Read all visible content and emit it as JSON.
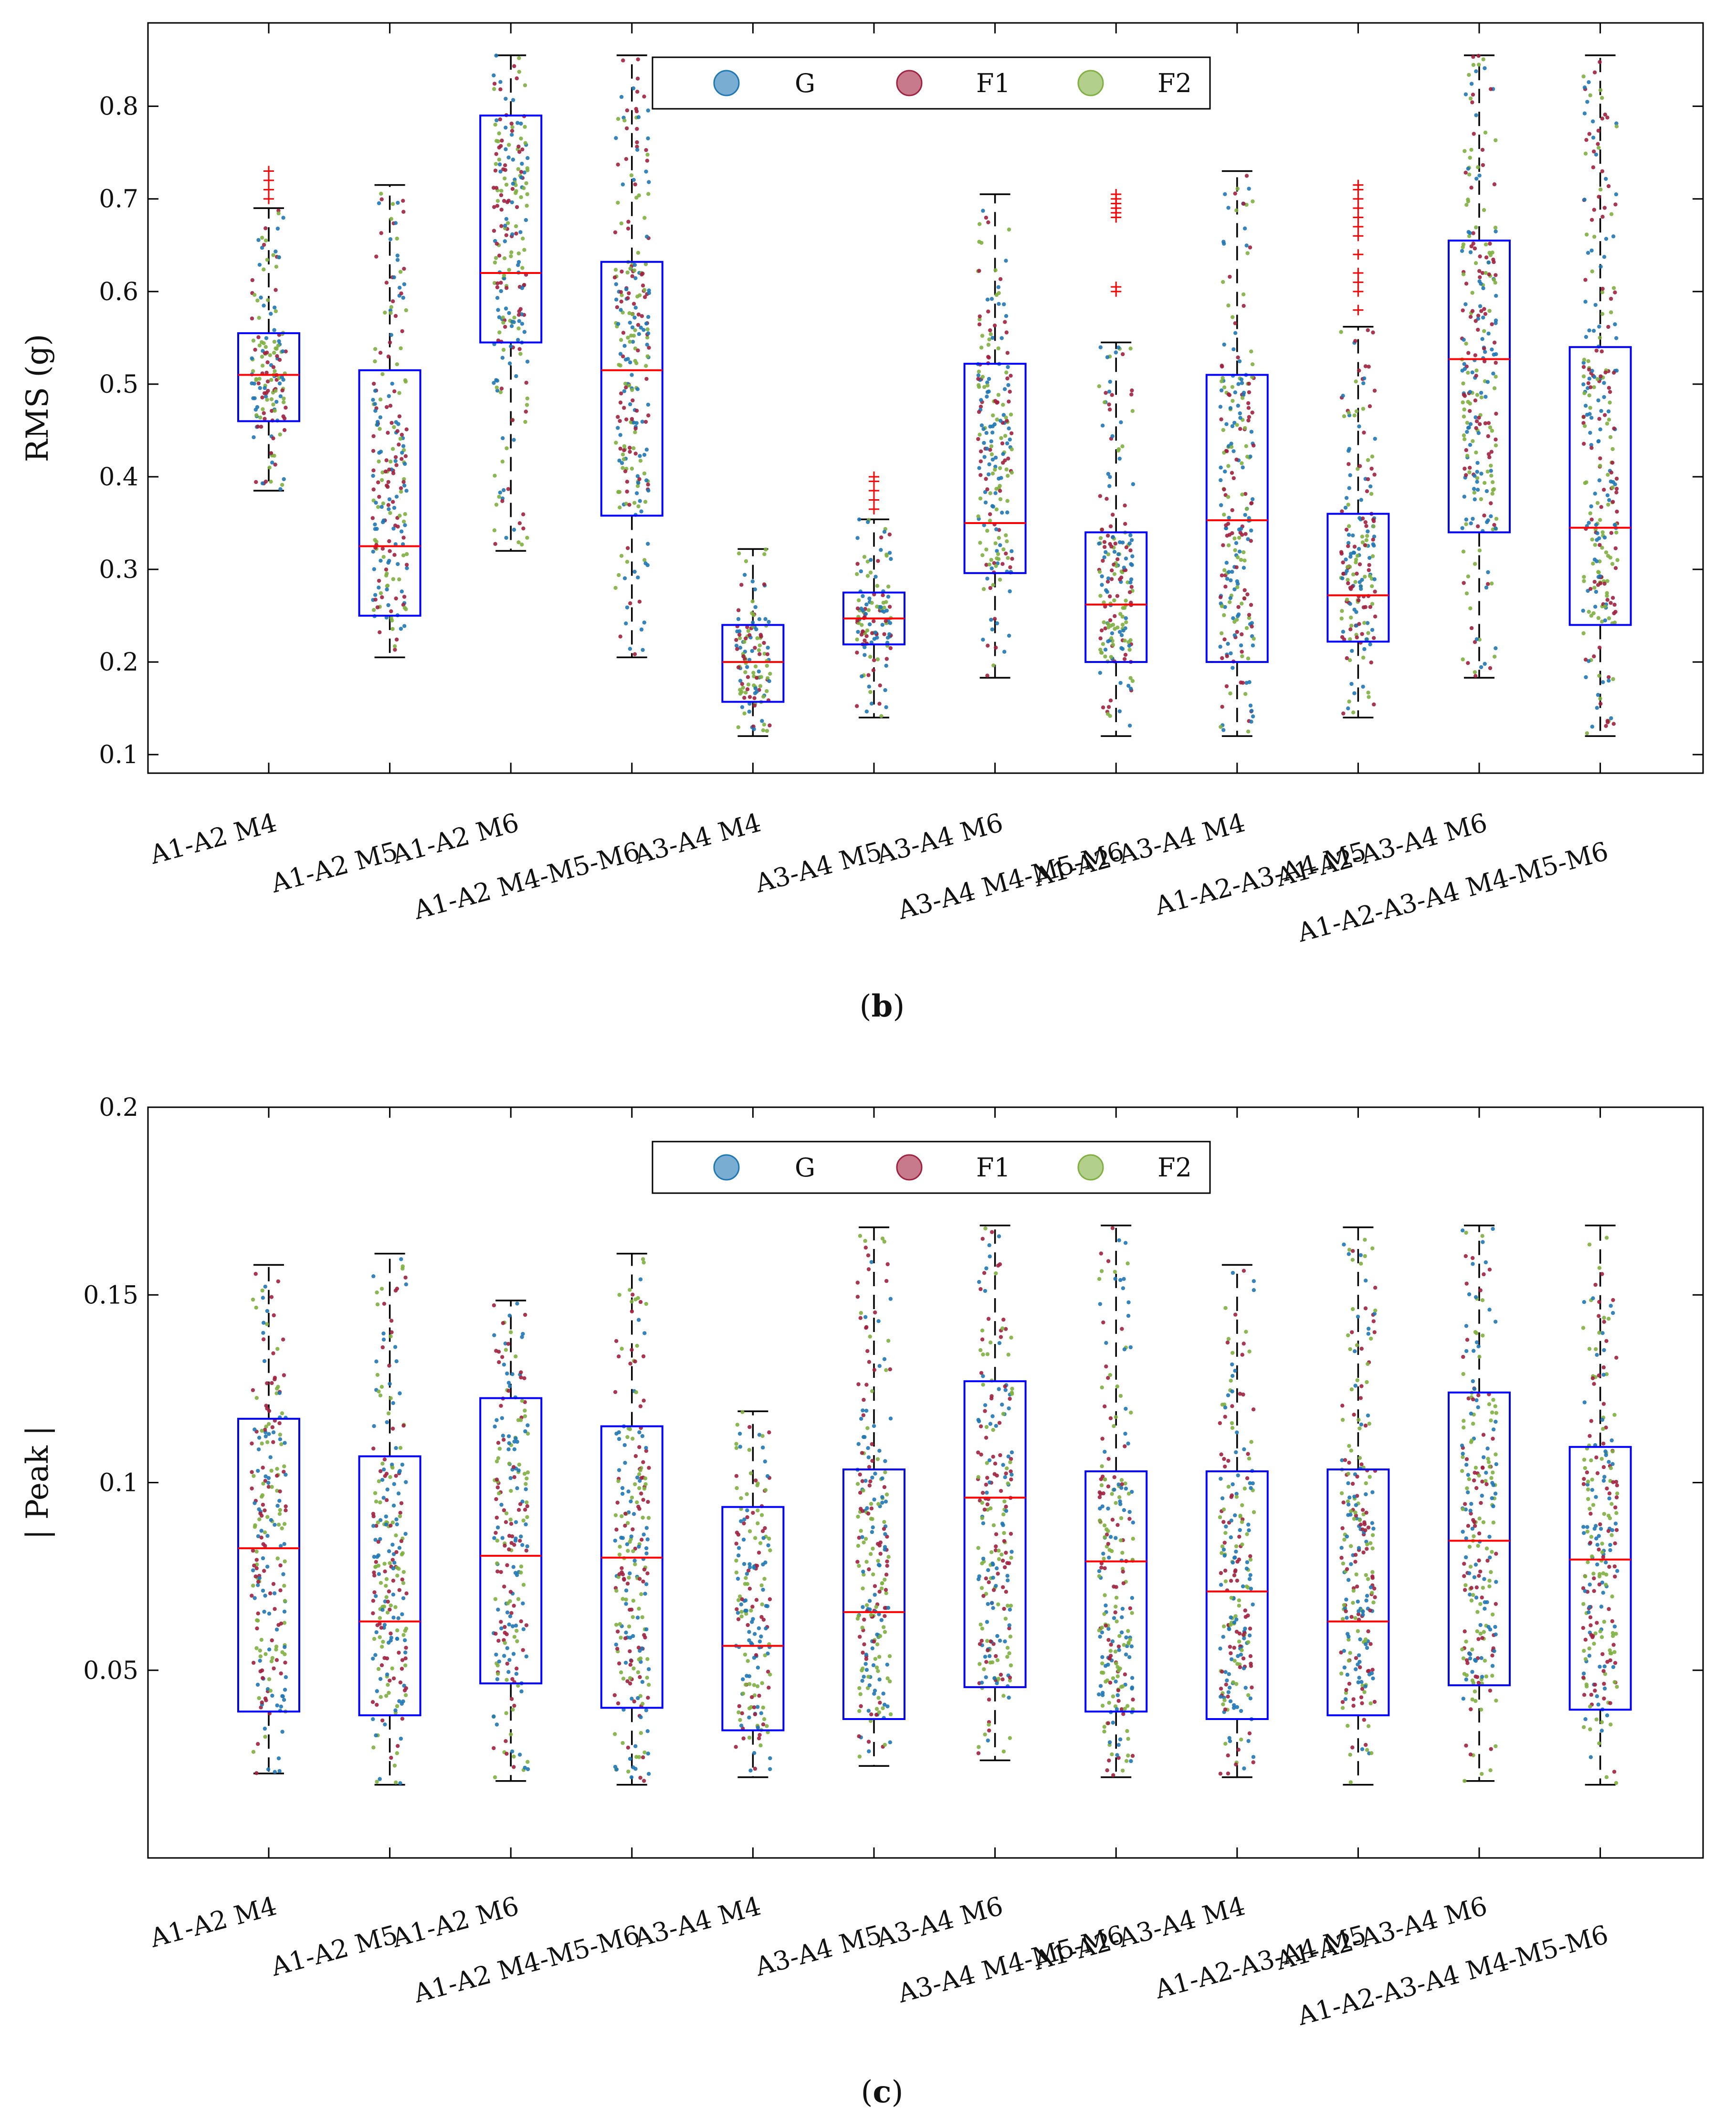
{
  "chart_data": [
    {
      "type": "boxplot",
      "panel_caption": "(b)",
      "caption_open": "(",
      "caption_letter": "b",
      "caption_close": ")",
      "ylabel": "RMS (g)",
      "xlabel": "",
      "ylim": [
        0.08,
        0.89
      ],
      "yticks": [
        0.1,
        0.2,
        0.3,
        0.4,
        0.5,
        0.6,
        0.7,
        0.8
      ],
      "ytick_labels": [
        "0.1",
        "0.2",
        "0.3",
        "0.4",
        "0.5",
        "0.6",
        "0.7",
        "0.8"
      ],
      "legend": [
        "G",
        "F1",
        "F2"
      ],
      "legend_position": "top-center",
      "categories": [
        "A1-A2 M4",
        "A1-A2 M5",
        "A1-A2 M6",
        "A1-A2 M4-M5-M6",
        "A3-A4 M4",
        "A3-A4 M5",
        "A3-A4 M6",
        "A3-A4 M4-M5-M6",
        "A1-A2-A3-A4 M4",
        "A1-A2-A3-A4 M5",
        "A1-A2-A3-A4 M6",
        "A1-A2-A3-A4 M4-M5-M6"
      ],
      "boxes": [
        {
          "whisker_low": 0.385,
          "q1": 0.46,
          "median": 0.51,
          "q3": 0.555,
          "whisker_high": 0.69,
          "outliers": [
            0.7,
            0.71,
            0.72,
            0.73
          ]
        },
        {
          "whisker_low": 0.205,
          "q1": 0.25,
          "median": 0.325,
          "q3": 0.515,
          "whisker_high": 0.715,
          "outliers": []
        },
        {
          "whisker_low": 0.32,
          "q1": 0.545,
          "median": 0.62,
          "q3": 0.79,
          "whisker_high": 0.855,
          "outliers": []
        },
        {
          "whisker_low": 0.205,
          "q1": 0.358,
          "median": 0.515,
          "q3": 0.632,
          "whisker_high": 0.855,
          "outliers": []
        },
        {
          "whisker_low": 0.12,
          "q1": 0.157,
          "median": 0.2,
          "q3": 0.24,
          "whisker_high": 0.322,
          "outliers": []
        },
        {
          "whisker_low": 0.14,
          "q1": 0.219,
          "median": 0.247,
          "q3": 0.275,
          "whisker_high": 0.354,
          "outliers": [
            0.365,
            0.375,
            0.385,
            0.395,
            0.4
          ]
        },
        {
          "whisker_low": 0.183,
          "q1": 0.296,
          "median": 0.35,
          "q3": 0.522,
          "whisker_high": 0.705,
          "outliers": []
        },
        {
          "whisker_low": 0.12,
          "q1": 0.2,
          "median": 0.262,
          "q3": 0.34,
          "whisker_high": 0.545,
          "outliers": [
            0.6,
            0.605,
            0.68,
            0.685,
            0.69,
            0.695,
            0.7,
            0.705
          ]
        },
        {
          "whisker_low": 0.12,
          "q1": 0.2,
          "median": 0.353,
          "q3": 0.51,
          "whisker_high": 0.73,
          "outliers": []
        },
        {
          "whisker_low": 0.14,
          "q1": 0.222,
          "median": 0.272,
          "q3": 0.36,
          "whisker_high": 0.562,
          "outliers": [
            0.58,
            0.6,
            0.61,
            0.62,
            0.64,
            0.66,
            0.67,
            0.68,
            0.69,
            0.7,
            0.71,
            0.715
          ]
        },
        {
          "whisker_low": 0.183,
          "q1": 0.34,
          "median": 0.527,
          "q3": 0.655,
          "whisker_high": 0.855,
          "outliers": []
        },
        {
          "whisker_low": 0.12,
          "q1": 0.24,
          "median": 0.345,
          "q3": 0.54,
          "whisker_high": 0.855,
          "outliers": []
        }
      ]
    },
    {
      "type": "boxplot",
      "panel_caption": "(c)",
      "caption_open": "(",
      "caption_letter": "c",
      "caption_close": ")",
      "ylabel": "| Peak |",
      "xlabel": "",
      "ylim": [
        0.0,
        0.2
      ],
      "yticks": [
        0.05,
        0.1,
        0.15,
        0.2
      ],
      "ytick_labels": [
        "0.05",
        "0.1",
        "0.15",
        "0.2"
      ],
      "legend": [
        "G",
        "F1",
        "F2"
      ],
      "legend_position": "top-center",
      "categories": [
        "A1-A2 M4",
        "A1-A2 M5",
        "A1-A2 M6",
        "A1-A2 M4-M5-M6",
        "A3-A4 M4",
        "A3-A4 M5",
        "A3-A4 M6",
        "A3-A4 M4-M5-M6",
        "A1-A2-A3-A4 M4",
        "A1-A2-A3-A4 M5",
        "A1-A2-A3-A4 M6",
        "A1-A2-A3-A4 M4-M5-M6"
      ],
      "boxes": [
        {
          "whisker_low": 0.0225,
          "q1": 0.039,
          "median": 0.0825,
          "q3": 0.117,
          "whisker_high": 0.158,
          "outliers": []
        },
        {
          "whisker_low": 0.0195,
          "q1": 0.038,
          "median": 0.063,
          "q3": 0.107,
          "whisker_high": 0.161,
          "outliers": []
        },
        {
          "whisker_low": 0.0205,
          "q1": 0.0465,
          "median": 0.0805,
          "q3": 0.1225,
          "whisker_high": 0.1485,
          "outliers": []
        },
        {
          "whisker_low": 0.0195,
          "q1": 0.04,
          "median": 0.08,
          "q3": 0.115,
          "whisker_high": 0.161,
          "outliers": []
        },
        {
          "whisker_low": 0.0215,
          "q1": 0.034,
          "median": 0.0565,
          "q3": 0.0935,
          "whisker_high": 0.119,
          "outliers": []
        },
        {
          "whisker_low": 0.0245,
          "q1": 0.037,
          "median": 0.0655,
          "q3": 0.1035,
          "whisker_high": 0.168,
          "outliers": []
        },
        {
          "whisker_low": 0.026,
          "q1": 0.0455,
          "median": 0.096,
          "q3": 0.127,
          "whisker_high": 0.1685,
          "outliers": []
        },
        {
          "whisker_low": 0.0215,
          "q1": 0.039,
          "median": 0.079,
          "q3": 0.103,
          "whisker_high": 0.1685,
          "outliers": []
        },
        {
          "whisker_low": 0.0215,
          "q1": 0.037,
          "median": 0.071,
          "q3": 0.103,
          "whisker_high": 0.158,
          "outliers": []
        },
        {
          "whisker_low": 0.0195,
          "q1": 0.038,
          "median": 0.063,
          "q3": 0.1035,
          "whisker_high": 0.168,
          "outliers": []
        },
        {
          "whisker_low": 0.0205,
          "q1": 0.046,
          "median": 0.0845,
          "q3": 0.124,
          "whisker_high": 0.1685,
          "outliers": []
        },
        {
          "whisker_low": 0.0195,
          "q1": 0.0395,
          "median": 0.0795,
          "q3": 0.1095,
          "whisker_high": 0.1685,
          "outliers": []
        }
      ]
    }
  ],
  "colors": {
    "box": "#0000ff",
    "median": "#ff0000",
    "whisker": "#000000",
    "outlier": "#ff0000",
    "G": "#1f77b4",
    "F1": "#a0213f",
    "F2": "#7fb040"
  }
}
